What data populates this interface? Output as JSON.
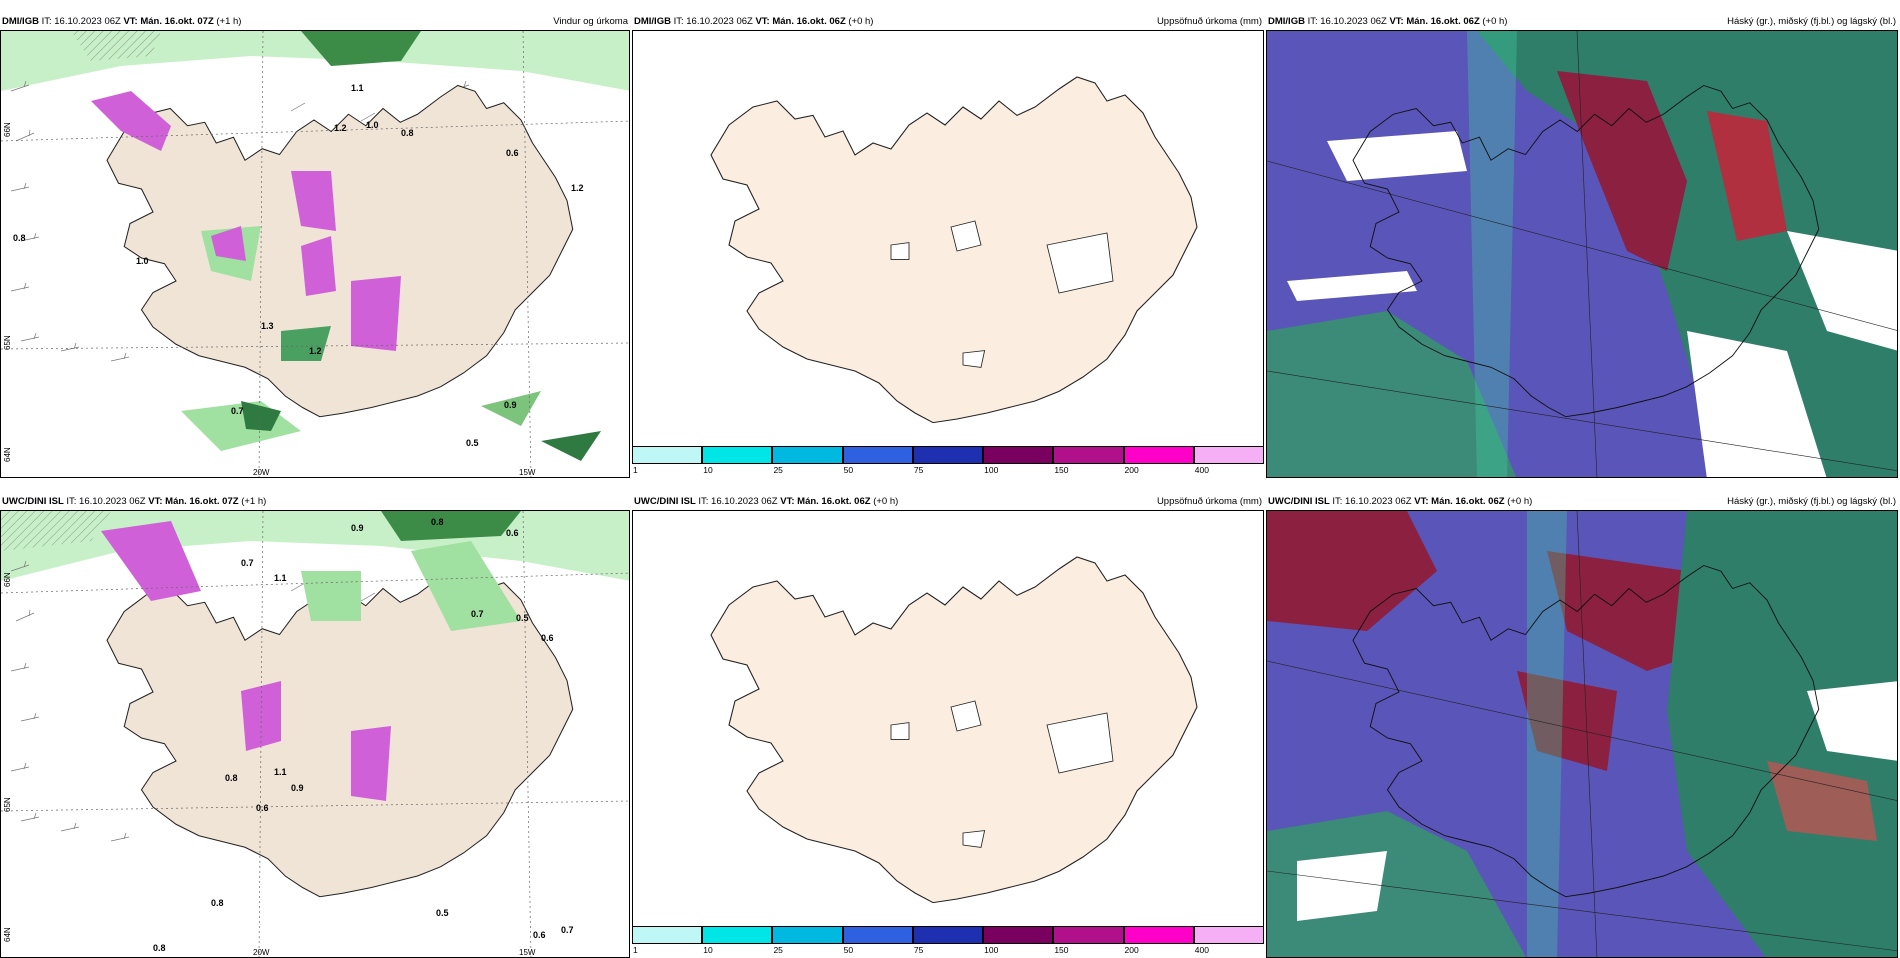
{
  "panels": [
    {
      "model": "DMI/IGB",
      "it": "IT: 16.10.2023 06Z",
      "vt_label": "VT:",
      "vt": "Mán. 16.okt. 07Z",
      "lead": "(+1 h)",
      "title": "Vindur og úrkoma"
    },
    {
      "model": "DMI/IGB",
      "it": "IT: 16.10.2023 06Z",
      "vt_label": "VT:",
      "vt": "Mán. 16.okt. 06Z",
      "lead": "(+0 h)",
      "title": "Uppsöfnuð úrkoma (mm)"
    },
    {
      "model": "DMI/IGB",
      "it": "IT: 16.10.2023 06Z",
      "vt_label": "VT:",
      "vt": "Mán. 16.okt. 06Z",
      "lead": "(+0 h)",
      "title": "Háský (gr.), miðský (fj.bl.) og lágský (bl.)"
    },
    {
      "model": "UWC/DINI ISL",
      "it": "IT: 16.10.2023 06Z",
      "vt_label": "VT:",
      "vt": "Mán. 16.okt. 07Z",
      "lead": "(+1 h)",
      "title": ""
    },
    {
      "model": "UWC/DINI ISL",
      "it": "IT: 16.10.2023 06Z",
      "vt_label": "VT:",
      "vt": "Mán. 16.okt. 06Z",
      "lead": "(+0 h)",
      "title": "Uppsöfnuð úrkoma (mm)"
    },
    {
      "model": "UWC/DINI ISL",
      "it": "IT: 16.10.2023 06Z",
      "vt_label": "VT:",
      "vt": "Mán. 16.okt. 06Z",
      "lead": "(+0 h)",
      "title": "Háský (gr.), miðský (fj.bl.) og lágský (bl.)"
    }
  ],
  "axis": {
    "lon_left": "20W",
    "lon_right": "15W",
    "lat_top": "66N",
    "lat_mid": "65N",
    "lat_bot": "64N"
  },
  "colorbar": {
    "ticks": [
      "1",
      "10",
      "25",
      "50",
      "75",
      "100",
      "150",
      "200",
      "400"
    ],
    "colors": [
      "#bff7f7",
      "#00e5e5",
      "#00b8e0",
      "#2f60e0",
      "#1e2fb0",
      "#7a0060",
      "#b0108a",
      "#ff00c8",
      "#f5b0f5"
    ]
  },
  "precip_top": [
    {
      "v": "1.1"
    },
    {
      "v": "1.2"
    },
    {
      "v": "1.0"
    },
    {
      "v": "0.8"
    },
    {
      "v": "0.6"
    },
    {
      "v": "1.2"
    },
    {
      "v": "0.8"
    },
    {
      "v": "1.3"
    },
    {
      "v": "1.2"
    },
    {
      "v": "0.7"
    },
    {
      "v": "0.9"
    },
    {
      "v": "0.5"
    },
    {
      "v": "1.0"
    }
  ],
  "precip_bot": [
    {
      "v": "0.9"
    },
    {
      "v": "0.8"
    },
    {
      "v": "0.6"
    },
    {
      "v": "0.7"
    },
    {
      "v": "1.1"
    },
    {
      "v": "0.7"
    },
    {
      "v": "0.5"
    },
    {
      "v": "0.6"
    },
    {
      "v": "0.8"
    },
    {
      "v": "1.1"
    },
    {
      "v": "0.9"
    },
    {
      "v": "0.6"
    },
    {
      "v": "0.8"
    },
    {
      "v": "0.5"
    },
    {
      "v": "0.6"
    },
    {
      "v": "0.7"
    },
    {
      "v": "0.8"
    }
  ]
}
